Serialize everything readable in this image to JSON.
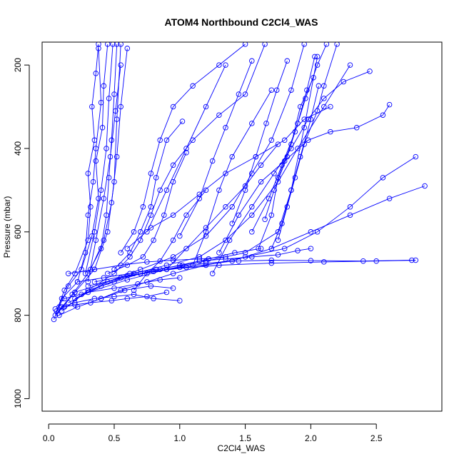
{
  "chart_data": {
    "type": "line",
    "title": "ATOM4 Northbound C2Cl4_WAS",
    "xlabel": "C2Cl4_WAS",
    "ylabel": "Pressure (mbar)",
    "xlim": [
      -0.05,
      3.0
    ],
    "ylim": [
      1030,
      145
    ],
    "y_reversed": true,
    "x_ticks": [
      0.0,
      0.5,
      1.0,
      1.5,
      2.0,
      2.5
    ],
    "x_tick_labels": [
      "0.0",
      "0.5",
      "1.0",
      "1.5",
      "2.0",
      "2.5"
    ],
    "y_ticks": [
      200,
      400,
      600,
      800,
      1000
    ],
    "y_tick_labels": [
      "200",
      "400",
      "600",
      "800",
      "1000"
    ],
    "grid": false,
    "legend": "none",
    "marker": "open-circle",
    "series_color": "#0000ff",
    "series": [
      {
        "x": [
          0.06,
          0.12,
          0.2,
          0.3,
          0.32,
          0.3,
          0.35,
          0.33,
          0.36,
          0.38
        ],
        "y": [
          790,
          740,
          700,
          620,
          540,
          460,
          380,
          300,
          220,
          150
        ]
      },
      {
        "x": [
          0.04,
          0.1,
          0.22,
          0.28,
          0.3,
          0.34,
          0.36,
          0.4,
          0.38
        ],
        "y": [
          810,
          760,
          720,
          650,
          560,
          480,
          400,
          290,
          160
        ]
      },
      {
        "x": [
          0.08,
          0.15,
          0.25,
          0.33,
          0.38,
          0.36,
          0.41,
          0.42,
          0.45
        ],
        "y": [
          780,
          730,
          690,
          610,
          520,
          430,
          350,
          250,
          150
        ]
      },
      {
        "x": [
          0.05,
          0.18,
          0.3,
          0.4,
          0.44,
          0.46,
          0.48,
          0.5,
          0.52
        ],
        "y": [
          800,
          750,
          700,
          640,
          560,
          470,
          380,
          270,
          150
        ]
      },
      {
        "x": [
          0.07,
          0.2,
          0.35,
          0.45,
          0.5,
          0.52,
          0.55
        ],
        "y": [
          795,
          745,
          690,
          600,
          480,
          330,
          150
        ]
      },
      {
        "x": [
          0.1,
          0.3,
          0.5,
          0.62,
          0.7,
          0.78,
          0.85,
          0.95,
          1.1,
          1.3,
          1.5,
          1.65
        ],
        "y": [
          790,
          740,
          700,
          660,
          620,
          560,
          500,
          440,
          380,
          320,
          270,
          150
        ]
      },
      {
        "x": [
          0.2,
          0.45,
          0.7,
          0.95,
          1.2,
          1.4,
          1.55,
          1.7,
          1.85,
          1.95
        ],
        "y": [
          760,
          720,
          690,
          660,
          610,
          540,
          460,
          380,
          260,
          150
        ]
      },
      {
        "x": [
          0.15,
          0.4,
          0.65,
          0.9,
          1.15,
          1.35,
          1.55,
          1.75,
          1.9,
          2.1,
          2.3
        ],
        "y": [
          770,
          730,
          700,
          680,
          660,
          620,
          560,
          480,
          400,
          300,
          200
        ]
      },
      {
        "x": [
          0.25,
          0.6,
          0.9,
          1.2,
          1.5,
          1.75,
          1.85,
          1.95,
          2.05
        ],
        "y": [
          750,
          715,
          690,
          670,
          650,
          600,
          500,
          350,
          180
        ]
      },
      {
        "x": [
          0.3,
          0.7,
          1.05,
          1.4,
          1.7,
          2.0,
          2.3,
          2.6,
          2.87
        ],
        "y": [
          730,
          700,
          685,
          670,
          640,
          600,
          560,
          520,
          490
        ]
      },
      {
        "x": [
          0.2,
          0.55,
          0.9,
          1.3,
          1.7,
          2.1,
          2.5,
          2.8
        ],
        "y": [
          745,
          710,
          690,
          680,
          675,
          672,
          670,
          668
        ]
      },
      {
        "x": [
          0.35,
          0.6,
          0.8,
          1.0,
          1.2,
          1.45,
          1.7,
          2.0,
          2.4,
          2.77
        ],
        "y": [
          720,
          705,
          695,
          685,
          675,
          670,
          668,
          669,
          670,
          668
        ]
      },
      {
        "x": [
          0.4,
          0.55,
          0.75,
          0.95,
          1.2,
          1.5,
          1.8,
          2.05,
          2.3,
          2.55,
          2.8
        ],
        "y": [
          760,
          740,
          720,
          700,
          680,
          660,
          640,
          600,
          540,
          470,
          420
        ]
      },
      {
        "x": [
          0.3,
          0.5,
          0.7,
          0.85,
          1.0,
          1.15,
          1.35,
          1.55,
          1.75,
          1.9,
          2.0
        ],
        "y": [
          740,
          720,
          700,
          690,
          680,
          670,
          665,
          660,
          655,
          645,
          640
        ]
      },
      {
        "x": [
          0.45,
          0.6,
          0.72,
          0.8,
          0.88,
          0.95,
          1.05
        ],
        "y": [
          700,
          680,
          660,
          620,
          560,
          480,
          410
        ]
      },
      {
        "x": [
          0.5,
          0.62,
          0.7,
          0.78,
          0.82,
          0.9,
          1.02
        ],
        "y": [
          690,
          650,
          600,
          540,
          470,
          380,
          335
        ]
      },
      {
        "x": [
          0.55,
          0.65,
          0.72,
          0.78,
          0.85,
          0.95,
          1.1,
          1.3,
          1.5
        ],
        "y": [
          650,
          600,
          540,
          460,
          380,
          300,
          250,
          200,
          150
        ]
      },
      {
        "x": [
          0.6,
          0.78,
          0.95,
          1.15,
          1.35,
          1.58,
          1.8,
          1.95,
          2.15
        ],
        "y": [
          640,
          590,
          560,
          510,
          460,
          420,
          380,
          330,
          300
        ]
      },
      {
        "x": [
          1.25,
          1.38,
          1.55,
          1.72,
          1.85,
          1.98,
          2.1,
          2.25,
          2.45
        ],
        "y": [
          700,
          620,
          540,
          460,
          400,
          330,
          280,
          240,
          215
        ]
      },
      {
        "x": [
          1.3,
          1.45,
          1.62,
          1.8,
          1.98,
          2.15,
          2.35,
          2.55,
          2.6
        ],
        "y": [
          650,
          560,
          480,
          430,
          380,
          360,
          350,
          320,
          295
        ]
      },
      {
        "x": [
          1.55,
          1.68,
          1.78,
          1.88,
          1.96,
          2.05,
          2.12
        ],
        "y": [
          600,
          520,
          440,
          360,
          280,
          200,
          150
        ]
      },
      {
        "x": [
          1.6,
          1.7,
          1.75,
          1.85,
          1.92,
          2.02
        ],
        "y": [
          640,
          560,
          470,
          390,
          300,
          230
        ]
      },
      {
        "x": [
          1.7,
          1.78,
          1.85,
          1.92,
          2.0,
          2.06
        ],
        "y": [
          640,
          580,
          500,
          420,
          330,
          250
        ]
      },
      {
        "x": [
          1.75,
          1.82,
          1.88,
          1.95,
          2.05,
          2.1,
          2.2
        ],
        "y": [
          620,
          540,
          470,
          390,
          310,
          250,
          150
        ]
      },
      {
        "x": [
          1.65,
          1.72,
          1.82,
          1.9,
          1.97,
          2.03
        ],
        "y": [
          570,
          500,
          420,
          340,
          260,
          180
        ]
      },
      {
        "x": [
          0.9,
          1.05,
          1.2,
          1.35,
          1.5,
          1.62,
          1.75
        ],
        "y": [
          690,
          640,
          590,
          540,
          490,
          440,
          390
        ]
      },
      {
        "x": [
          0.65,
          0.75,
          0.85,
          0.95,
          1.05,
          1.2
        ],
        "y": [
          740,
          700,
          670,
          620,
          560,
          500
        ]
      },
      {
        "x": [
          0.1,
          0.2,
          0.35,
          0.5,
          0.65,
          0.8,
          1.0
        ],
        "y": [
          780,
          770,
          760,
          755,
          750,
          760,
          765
        ]
      },
      {
        "x": [
          0.05,
          0.12,
          0.2,
          0.32,
          0.48,
          0.6,
          0.75,
          0.9
        ],
        "y": [
          785,
          780,
          775,
          770,
          765,
          760,
          755,
          745
        ]
      },
      {
        "x": [
          0.08,
          0.22,
          0.4,
          0.58,
          0.78,
          0.95
        ],
        "y": [
          800,
          780,
          760,
          740,
          730,
          735
        ]
      },
      {
        "x": [
          0.12,
          0.3,
          0.5,
          0.68,
          0.85,
          1.0
        ],
        "y": [
          760,
          745,
          735,
          725,
          715,
          710
        ]
      },
      {
        "x": [
          0.15,
          0.35,
          0.55,
          0.75,
          0.95,
          1.15,
          1.35
        ],
        "y": [
          700,
          690,
          680,
          672,
          668,
          665,
          660
        ]
      },
      {
        "x": [
          0.22,
          0.42,
          0.62,
          0.82,
          1.02,
          1.22,
          1.42,
          1.62
        ],
        "y": [
          720,
          710,
          700,
          690,
          680,
          665,
          650,
          640
        ]
      },
      {
        "x": [
          0.32,
          0.42,
          0.48,
          0.52,
          0.55,
          0.6
        ],
        "y": [
          690,
          620,
          530,
          420,
          300,
          160
        ]
      },
      {
        "x": [
          0.28,
          0.35,
          0.4,
          0.44,
          0.46,
          0.49
        ],
        "y": [
          700,
          600,
          500,
          400,
          280,
          150
        ]
      },
      {
        "x": [
          0.3,
          0.36,
          0.42,
          0.47,
          0.51,
          0.55
        ],
        "y": [
          720,
          620,
          520,
          420,
          310,
          200
        ]
      },
      {
        "x": [
          1.0,
          1.15,
          1.25,
          1.35,
          1.45,
          1.55
        ],
        "y": [
          610,
          520,
          430,
          350,
          270,
          190
        ]
      },
      {
        "x": [
          1.1,
          1.2,
          1.3,
          1.4,
          1.55,
          1.7
        ],
        "y": [
          680,
          600,
          500,
          420,
          340,
          260
        ]
      },
      {
        "x": [
          1.4,
          1.5,
          1.58,
          1.66,
          1.74,
          1.82
        ],
        "y": [
          580,
          500,
          420,
          340,
          260,
          190
        ]
      },
      {
        "x": [
          0.75,
          0.9,
          1.05,
          1.2,
          1.35
        ],
        "y": [
          600,
          500,
          400,
          300,
          200
        ]
      }
    ]
  }
}
